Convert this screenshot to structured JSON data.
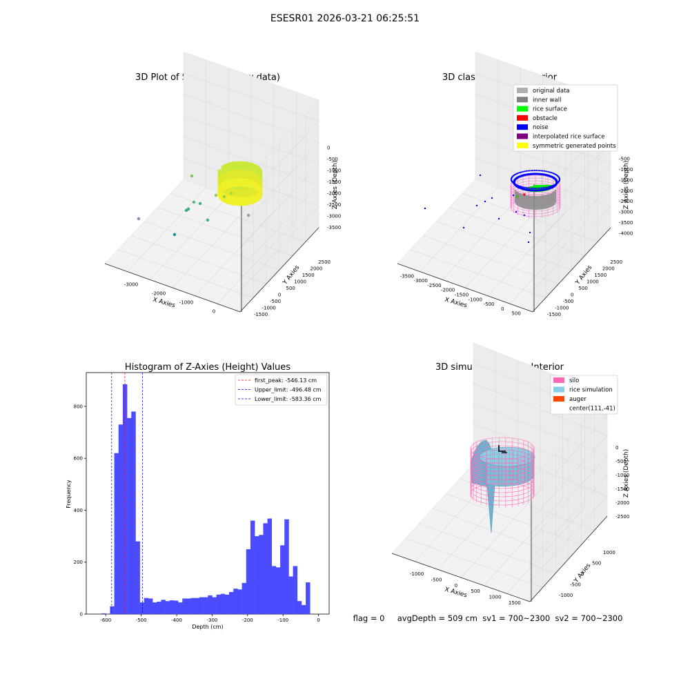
{
  "suptitle": "ESESR01 2026-03-21 06:25:51",
  "panels": {
    "raw": {
      "title": "3D Plot of Silo Interior(row data)",
      "xlabel": "X Axies",
      "ylabel": "Y Axies",
      "zlabel": "Z Axies (Depth)",
      "x_ticks": [
        "-3000",
        "-2000",
        "-1000",
        "0"
      ],
      "y_ticks": [
        "-1500",
        "-1000",
        "-500",
        "0",
        "500",
        "1000",
        "1500",
        "2000",
        "2500"
      ],
      "z_ticks": [
        "0",
        "-500",
        "-1000",
        "-1500",
        "-2000",
        "-2500",
        "-3000",
        "-3500"
      ]
    },
    "classify": {
      "title": "3D classify of Silo Interior",
      "xlabel": "X Axies",
      "ylabel": "Y Axies",
      "zlabel": "Z Axies (Depth)",
      "x_ticks": [
        "-3500",
        "-3000",
        "-2500",
        "-2000",
        "-1500",
        "-1000",
        "-500",
        "0",
        "500"
      ],
      "y_ticks": [
        "-1500",
        "-1000",
        "-500",
        "0",
        "500",
        "1000",
        "1500",
        "2000",
        "2500"
      ],
      "z_ticks": [
        "-500",
        "-1000",
        "-1500",
        "-2000",
        "-2500",
        "-3000",
        "-3500",
        "-4000"
      ],
      "legend": [
        {
          "label": "original data",
          "color": "#b0b0b0"
        },
        {
          "label": "inner wall",
          "color": "#808080"
        },
        {
          "label": "rice surface",
          "color": "#00ff00"
        },
        {
          "label": "obstacle",
          "color": "#ff0000"
        },
        {
          "label": "noise",
          "color": "#0000ff"
        },
        {
          "label": "interpolated rice surface",
          "color": "#800080"
        },
        {
          "label": "symmetric generated points",
          "color": "#ffff00"
        }
      ]
    },
    "simulation": {
      "title": "3D simulation of Silo Interior",
      "xlabel": "X Axies",
      "ylabel": "Y Axies",
      "zlabel": "Z Axies (Depth)",
      "x_ticks": [
        "-1000",
        "-500",
        "0",
        "500",
        "1000",
        "1500"
      ],
      "y_ticks": [
        "-1000",
        "-500",
        "0",
        "500",
        "1000"
      ],
      "z_ticks": [
        "0",
        "-500",
        "-1000",
        "-1500",
        "-2000",
        "-2500"
      ],
      "legend": [
        {
          "label": "silo",
          "color": "#ff69b4"
        },
        {
          "label": "rice simulation",
          "color": "#87ceeb"
        },
        {
          "label": "auger",
          "color": "#ff4500"
        },
        {
          "label": "center(111,-41)",
          "color": ""
        }
      ],
      "status": "flag = 0     avgDepth = 509 cm  sv1 = 700~2300  sv2 = 700~2300"
    }
  },
  "chart_data": [
    {
      "type": "scatter",
      "title": "3D Plot of Silo Interior(row data)",
      "xlabel": "X Axies",
      "ylabel": "Y Axies",
      "zlabel": "Z Axies (Depth)",
      "xlim": [
        -3800,
        600
      ],
      "ylim": [
        -1500,
        2600
      ],
      "zlim": [
        -3600,
        200
      ],
      "grid": true
    },
    {
      "type": "scatter",
      "title": "3D classify of Silo Interior",
      "xlabel": "X Axies",
      "ylabel": "Y Axies",
      "zlabel": "Z Axies (Depth)",
      "xlim": [
        -3600,
        600
      ],
      "ylim": [
        -1500,
        2600
      ],
      "zlim": [
        -4000,
        -400
      ],
      "legend_position": "top-right",
      "series": [
        {
          "name": "original data"
        },
        {
          "name": "inner wall"
        },
        {
          "name": "rice surface"
        },
        {
          "name": "obstacle"
        },
        {
          "name": "noise"
        },
        {
          "name": "interpolated rice surface"
        },
        {
          "name": "symmetric generated points"
        }
      ]
    },
    {
      "type": "bar",
      "title": "Histogram of Z-Axies (Height) Values",
      "xlabel": "Depth (cm)",
      "ylabel": "Frequency",
      "xlim": [
        -655,
        30
      ],
      "ylim": [
        0,
        930
      ],
      "x_ticks": [
        -600,
        -500,
        -400,
        -300,
        -200,
        -100,
        0
      ],
      "y_ticks": [
        0,
        200,
        400,
        600,
        800
      ],
      "bin_start": -612,
      "bin_width": 12,
      "values": [
        3,
        0,
        30,
        620,
        730,
        885,
        755,
        780,
        280,
        45,
        62,
        60,
        45,
        48,
        55,
        50,
        53,
        52,
        45,
        60,
        60,
        62,
        62,
        65,
        65,
        72,
        65,
        75,
        78,
        75,
        85,
        98,
        95,
        120,
        250,
        360,
        300,
        305,
        350,
        368,
        185,
        180,
        265,
        365,
        145,
        185,
        50,
        35,
        122
      ],
      "lines": [
        {
          "label": "first_peak: -546.13 cm",
          "x": -546.13,
          "color": "#ff0000"
        },
        {
          "label": "Upper_limit: -496.48 cm",
          "x": -496.48,
          "color": "#0000ff"
        },
        {
          "label": "Lower_limit: -583.36 cm",
          "x": -583.36,
          "color": "#0000ff"
        }
      ],
      "legend_position": "top-right",
      "grid": false
    },
    {
      "type": "area",
      "title": "3D simulation of Silo Interior",
      "xlabel": "X Axies",
      "ylabel": "Y Axies",
      "zlabel": "Z Axies (Depth)",
      "xlim": [
        -1300,
        1600
      ],
      "ylim": [
        -1300,
        1300
      ],
      "zlim": [
        -2600,
        300
      ],
      "legend_position": "top-right",
      "series": [
        {
          "name": "silo"
        },
        {
          "name": "rice simulation"
        },
        {
          "name": "auger"
        },
        {
          "name": "center(111,-41)"
        }
      ]
    }
  ]
}
